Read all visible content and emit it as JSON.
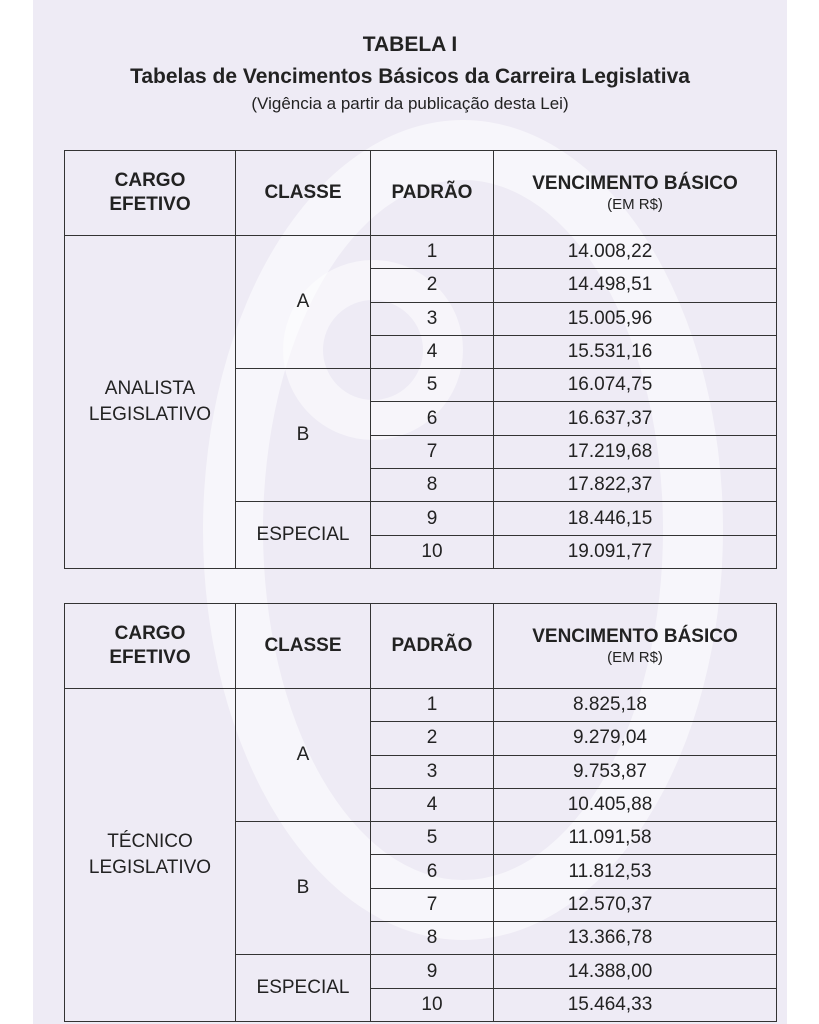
{
  "header": {
    "title": "TABELA I",
    "subtitle": "Tabelas de Vencimentos Básicos da Carreira Legislativa",
    "note": "(Vigência a partir da publicação desta Lei)"
  },
  "columns": {
    "cargo": "CARGO EFETIVO",
    "classe": "CLASSE",
    "padrao": "PADRÃO",
    "vencimento": "VENCIMENTO BÁSICO",
    "vencimento_unit": "(EM R$)"
  },
  "tables": [
    {
      "cargo": "ANALISTA LEGISLATIVO",
      "classes": [
        {
          "name": "A",
          "rows": [
            [
              "1",
              "14.008,22"
            ],
            [
              "2",
              "14.498,51"
            ],
            [
              "3",
              "15.005,96"
            ],
            [
              "4",
              "15.531,16"
            ]
          ]
        },
        {
          "name": "B",
          "rows": [
            [
              "5",
              "16.074,75"
            ],
            [
              "6",
              "16.637,37"
            ],
            [
              "7",
              "17.219,68"
            ],
            [
              "8",
              "17.822,37"
            ]
          ]
        },
        {
          "name": "ESPECIAL",
          "rows": [
            [
              "9",
              "18.446,15"
            ],
            [
              "10",
              "19.091,77"
            ]
          ]
        }
      ]
    },
    {
      "cargo": "TÉCNICO LEGISLATIVO",
      "classes": [
        {
          "name": "A",
          "rows": [
            [
              "1",
              "8.825,18"
            ],
            [
              "2",
              "9.279,04"
            ],
            [
              "3",
              "9.753,87"
            ],
            [
              "4",
              "10.405,88"
            ]
          ]
        },
        {
          "name": "B",
          "rows": [
            [
              "5",
              "11.091,58"
            ],
            [
              "6",
              "11.812,53"
            ],
            [
              "7",
              "12.570,37"
            ],
            [
              "8",
              "13.366,78"
            ]
          ]
        },
        {
          "name": "ESPECIAL",
          "rows": [
            [
              "9",
              "14.388,00"
            ],
            [
              "10",
              "15.464,33"
            ]
          ]
        }
      ]
    }
  ]
}
